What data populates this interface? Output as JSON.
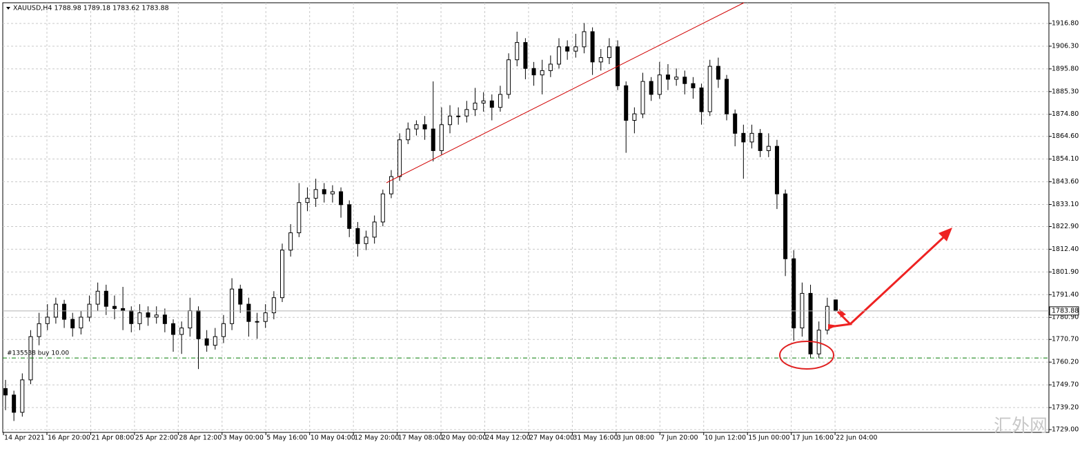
{
  "chart_data": {
    "type": "candlestick",
    "title": "XAUUSD,H4  1788.98 1789.18 1783.62 1783.88",
    "ylim": [
      1727.72,
      1926.37
    ],
    "yticks": [
      {
        "value": 1916.8,
        "label": "1916.80"
      },
      {
        "value": 1906.3,
        "label": "1906.30"
      },
      {
        "value": 1895.8,
        "label": "1895.80"
      },
      {
        "value": 1885.3,
        "label": "1885.30"
      },
      {
        "value": 1874.8,
        "label": "1874.80"
      },
      {
        "value": 1864.6,
        "label": "1864.60"
      },
      {
        "value": 1854.1,
        "label": "1854.10"
      },
      {
        "value": 1843.6,
        "label": "1843.60"
      },
      {
        "value": 1833.1,
        "label": "1833.10"
      },
      {
        "value": 1822.9,
        "label": "1822.90"
      },
      {
        "value": 1812.4,
        "label": "1812.40"
      },
      {
        "value": 1801.9,
        "label": "1801.90"
      },
      {
        "value": 1791.4,
        "label": "1791.40"
      },
      {
        "value": 1780.9,
        "label": "1780.90"
      },
      {
        "value": 1770.7,
        "label": "1770.70"
      },
      {
        "value": 1760.2,
        "label": "1760.20"
      },
      {
        "value": 1749.7,
        "label": "1749.70"
      },
      {
        "value": 1739.2,
        "label": "1739.20"
      },
      {
        "value": 1729,
        "label": "1729.00"
      }
    ],
    "x_labels": [
      "14 Apr 2021",
      "16 Apr 20:00",
      "21 Apr 08:00",
      "25 Apr 22:00",
      "28 Apr 12:00",
      "3 May 00:00",
      "5 May 16:00",
      "10 May 04:00",
      "12 May 20:00",
      "17 May 08:00",
      "20 May 00:00",
      "24 May 12:00",
      "27 May 04:00",
      "31 May 16:00",
      "3 Jun 08:00",
      "7 Jun 20:00",
      "10 Jun 12:00",
      "15 Jun 00:00",
      "17 Jun 16:00",
      "22 Jun 04:00"
    ],
    "grid": true,
    "bull_color": "#ffffff",
    "bear_color": "#000000",
    "open": [
      1748,
      1745,
      1737,
      1752,
      1772,
      1778,
      1781,
      1787,
      1780,
      1776,
      1781,
      1787,
      1793,
      1786,
      1785,
      1784,
      1778,
      1783,
      1781,
      1782,
      1778,
      1773,
      1776,
      1784,
      1771,
      1768,
      1772,
      1778,
      1794,
      1787,
      1779,
      1779,
      1783,
      1790,
      1812,
      1820,
      1834,
      1836,
      1840,
      1838,
      1839,
      1833,
      1822,
      1815,
      1818,
      1825,
      1838,
      1846,
      1863,
      1868,
      1870,
      1868,
      1858,
      1870,
      1874,
      1874,
      1877,
      1880,
      1881,
      1878,
      1884,
      1900,
      1908,
      1896,
      1893,
      1895,
      1898,
      1906,
      1904,
      1906,
      1913,
      1899,
      1901,
      1906,
      1888,
      1872,
      1875,
      1890,
      1884,
      1893,
      1891,
      1892,
      1889,
      1887,
      1876,
      1897,
      1891,
      1875,
      1866,
      1862,
      1866,
      1858,
      1860,
      1838,
      1808,
      1776,
      1792,
      1764,
      1775,
      1788.98
    ],
    "high": [
      1752,
      1747,
      1755,
      1775,
      1783,
      1787,
      1790,
      1789,
      1783,
      1784,
      1791,
      1797,
      1796,
      1791,
      1795,
      1786,
      1787,
      1786,
      1786,
      1785,
      1780,
      1779,
      1790,
      1786,
      1775,
      1776,
      1782,
      1799,
      1796,
      1790,
      1783,
      1787,
      1793,
      1815,
      1824,
      1843,
      1841,
      1845,
      1843,
      1842,
      1841,
      1835,
      1825,
      1821,
      1828,
      1840,
      1849,
      1866,
      1871,
      1872,
      1874,
      1890,
      1878,
      1879,
      1878,
      1881,
      1887,
      1885,
      1884,
      1888,
      1903,
      1913,
      1910,
      1899,
      1900,
      1902,
      1910,
      1909,
      1912,
      1917,
      1915,
      1905,
      1910,
      1909,
      1890,
      1878,
      1894,
      1892,
      1899,
      1898,
      1896,
      1895,
      1892,
      1889,
      1900,
      1901,
      1893,
      1877,
      1870,
      1870,
      1868,
      1866,
      1863,
      1840,
      1812,
      1797,
      1796,
      1779,
      1790,
      1789.18
    ],
    "low": [
      1738,
      1733,
      1735,
      1750,
      1768,
      1775,
      1778,
      1776,
      1772,
      1773,
      1779,
      1784,
      1782,
      1780,
      1775,
      1774,
      1775,
      1777,
      1778,
      1774,
      1765,
      1764,
      1772,
      1757,
      1765,
      1766,
      1769,
      1775,
      1783,
      1772,
      1771,
      1776,
      1780,
      1788,
      1809,
      1818,
      1830,
      1832,
      1834,
      1834,
      1827,
      1818,
      1809,
      1812,
      1815,
      1823,
      1836,
      1844,
      1861,
      1865,
      1863,
      1853,
      1856,
      1866,
      1870,
      1871,
      1874,
      1876,
      1872,
      1876,
      1882,
      1897,
      1891,
      1888,
      1884,
      1892,
      1896,
      1900,
      1901,
      1903,
      1893,
      1895,
      1898,
      1886,
      1857,
      1866,
      1873,
      1881,
      1882,
      1886,
      1888,
      1884,
      1882,
      1870,
      1874,
      1887,
      1872,
      1860,
      1845,
      1859,
      1855,
      1855,
      1831,
      1800,
      1770,
      1772,
      1762,
      1762,
      1773,
      1783.62
    ],
    "close": [
      1745,
      1737,
      1752,
      1772,
      1778,
      1781,
      1787,
      1780,
      1776,
      1781,
      1787,
      1793,
      1786,
      1785,
      1784,
      1778,
      1783,
      1781,
      1782,
      1778,
      1773,
      1776,
      1784,
      1771,
      1768,
      1772,
      1778,
      1794,
      1787,
      1779,
      1779,
      1783,
      1790,
      1812,
      1820,
      1834,
      1836,
      1840,
      1838,
      1839,
      1833,
      1822,
      1815,
      1818,
      1825,
      1838,
      1846,
      1863,
      1868,
      1870,
      1868,
      1858,
      1870,
      1874,
      1874,
      1877,
      1880,
      1881,
      1878,
      1884,
      1900,
      1908,
      1896,
      1893,
      1895,
      1898,
      1906,
      1904,
      1906,
      1913,
      1899,
      1901,
      1906,
      1888,
      1872,
      1875,
      1890,
      1884,
      1893,
      1891,
      1892,
      1889,
      1887,
      1876,
      1897,
      1891,
      1875,
      1866,
      1862,
      1866,
      1858,
      1860,
      1838,
      1808,
      1776,
      1792,
      1764,
      1775,
      1786,
      1783.88
    ],
    "current_price": 1783.88,
    "order_line": {
      "value": 1762.1,
      "label": "#135538 buy 10.00"
    },
    "watermark": "汇外网"
  }
}
